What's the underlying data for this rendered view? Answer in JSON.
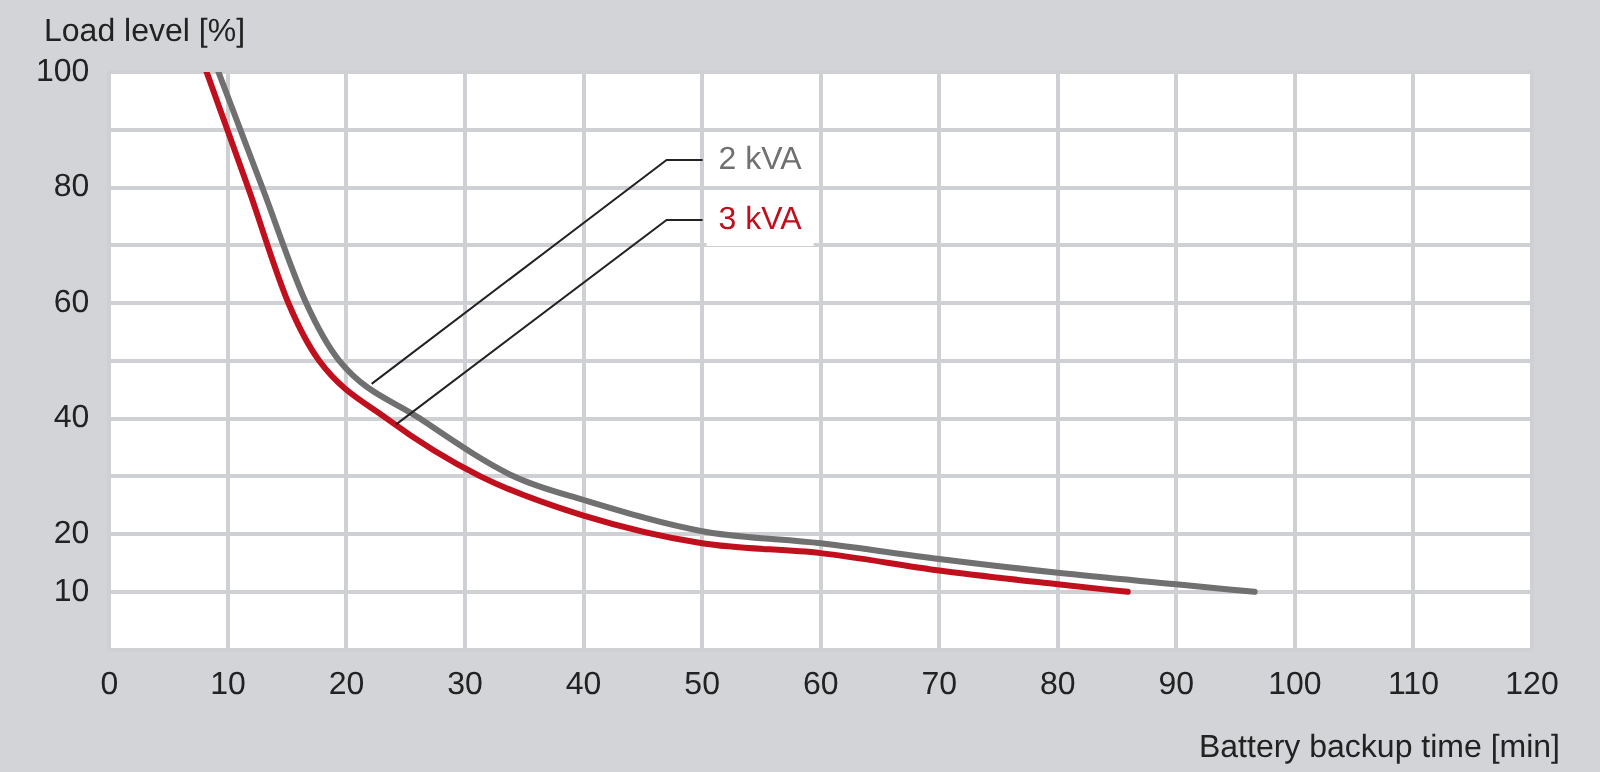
{
  "chart_data": {
    "type": "line",
    "xlabel": "Battery backup time [min]",
    "ylabel": "Load level [%]",
    "xlim": [
      0,
      120
    ],
    "xticks": [
      0,
      10,
      20,
      30,
      40,
      50,
      60,
      70,
      80,
      90,
      100,
      110,
      120
    ],
    "ylim": [
      0,
      100
    ],
    "yticks": [
      {
        "value": 0,
        "label": null
      },
      10,
      20,
      {
        "value": 30,
        "label": null
      },
      40,
      {
        "value": 50,
        "label": null
      },
      60,
      {
        "value": 70,
        "label": null
      },
      80,
      {
        "value": 90,
        "label": null
      },
      100
    ],
    "grid": true,
    "marker": "none",
    "line_style": "solid",
    "series": [
      {
        "name": "2 kVA",
        "color": "#707070",
        "x": [
          9.2,
          12.9,
          16.6,
          19.4,
          26.2,
          34.1,
          40,
          50,
          60,
          70,
          80,
          90,
          96.6
        ],
        "values": [
          100,
          80,
          60,
          50,
          40,
          30,
          25.9,
          20.5,
          18.4,
          15.7,
          13.3,
          11.3,
          10
        ]
      },
      {
        "name": "3 kVA",
        "color": "#c0101e",
        "x": [
          8.2,
          11.7,
          15.1,
          17.7,
          23.4,
          31.3,
          40,
          50,
          60,
          70,
          80,
          85.9
        ],
        "values": [
          100,
          80,
          60,
          50,
          40,
          30,
          23.2,
          18.4,
          16.7,
          13.7,
          11.3,
          10
        ]
      }
    ]
  }
}
